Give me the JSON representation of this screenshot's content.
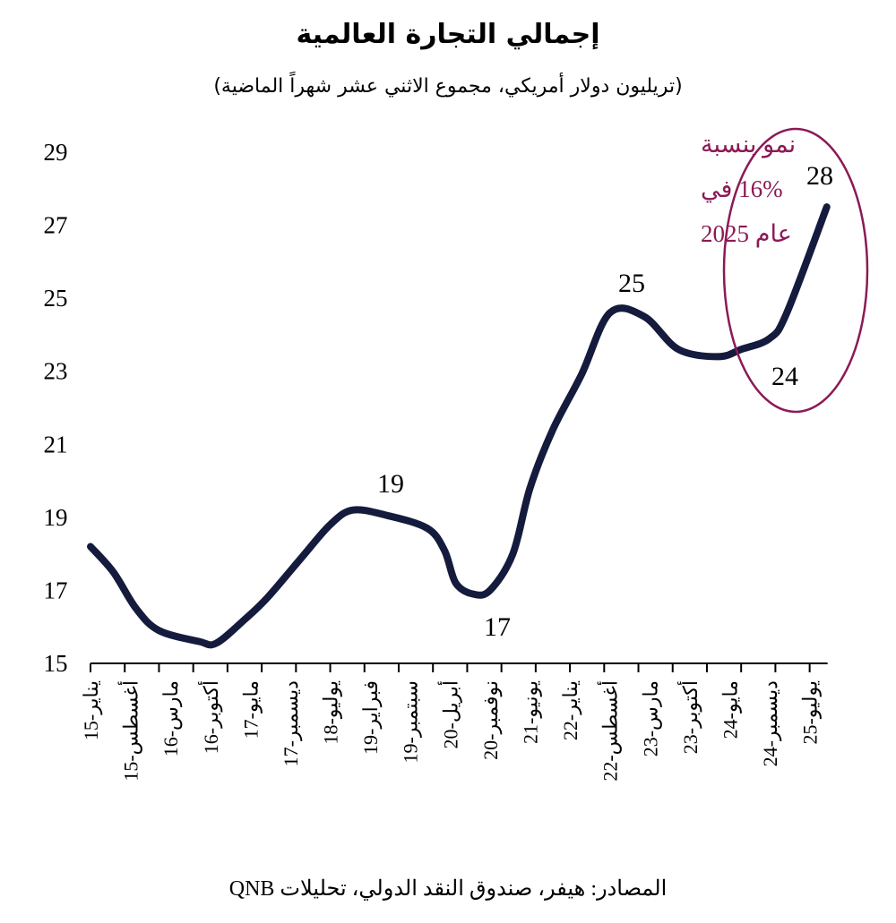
{
  "chart_data": {
    "type": "line",
    "title": "إجمالي التجارة العالمية",
    "subtitle": "(تريليون دولار أمريكي، مجموع الاثني عشر شهراً الماضية)",
    "xlabel": "",
    "ylabel": "",
    "ylim": [
      15,
      29
    ],
    "yticks": [
      15,
      17,
      19,
      21,
      23,
      25,
      27,
      29
    ],
    "x_start": "2015-01",
    "x_tick_labels": [
      "يناير-15",
      "أغسطس-15",
      "مارس-16",
      "أكتوبر-16",
      "مايو-17",
      "ديسمبر-17",
      "يوليو-18",
      "فبراير-19",
      "سبتمبر-19",
      "أبريل-20",
      "نوفمبر-20",
      "يونيو-21",
      "يناير-22",
      "أغسطس-22",
      "مارس-23",
      "أكتوبر-23",
      "مايو-24",
      "ديسمبر-24",
      "يوليو-25"
    ],
    "grid": false,
    "series": [
      {
        "name": "إجمالي التجارة العالمية",
        "color": "#141b3c",
        "x": [
          "2015-01",
          "2015-05",
          "2015-09",
          "2016-01",
          "2016-08",
          "2016-11",
          "2017-04",
          "2017-08",
          "2018-02",
          "2018-07",
          "2018-11",
          "2019-05",
          "2019-12",
          "2020-03",
          "2020-05",
          "2020-08",
          "2020-11",
          "2021-03",
          "2021-06",
          "2021-10",
          "2022-03",
          "2022-08",
          "2023-02",
          "2023-08",
          "2024-03",
          "2024-07",
          "2024-12",
          "2025-03",
          "2025-10"
        ],
        "values": [
          18.2,
          17.5,
          16.5,
          15.9,
          15.6,
          15.55,
          16.2,
          16.8,
          17.9,
          18.8,
          19.2,
          19.05,
          18.7,
          18.1,
          17.2,
          16.9,
          17.0,
          18.0,
          19.8,
          21.4,
          22.9,
          24.6,
          24.5,
          23.6,
          23.4,
          23.6,
          23.9,
          24.6,
          27.5
        ]
      }
    ],
    "data_labels": [
      "19",
      "17",
      "25",
      "24",
      "28"
    ],
    "annotation": {
      "lines": [
        "نمو بنسبة",
        "16% في",
        "عام 2025"
      ],
      "color": "#8b1a55"
    },
    "source": "المصادر: هيفر، صندوق النقد الدولي، تحليلات QNB"
  }
}
